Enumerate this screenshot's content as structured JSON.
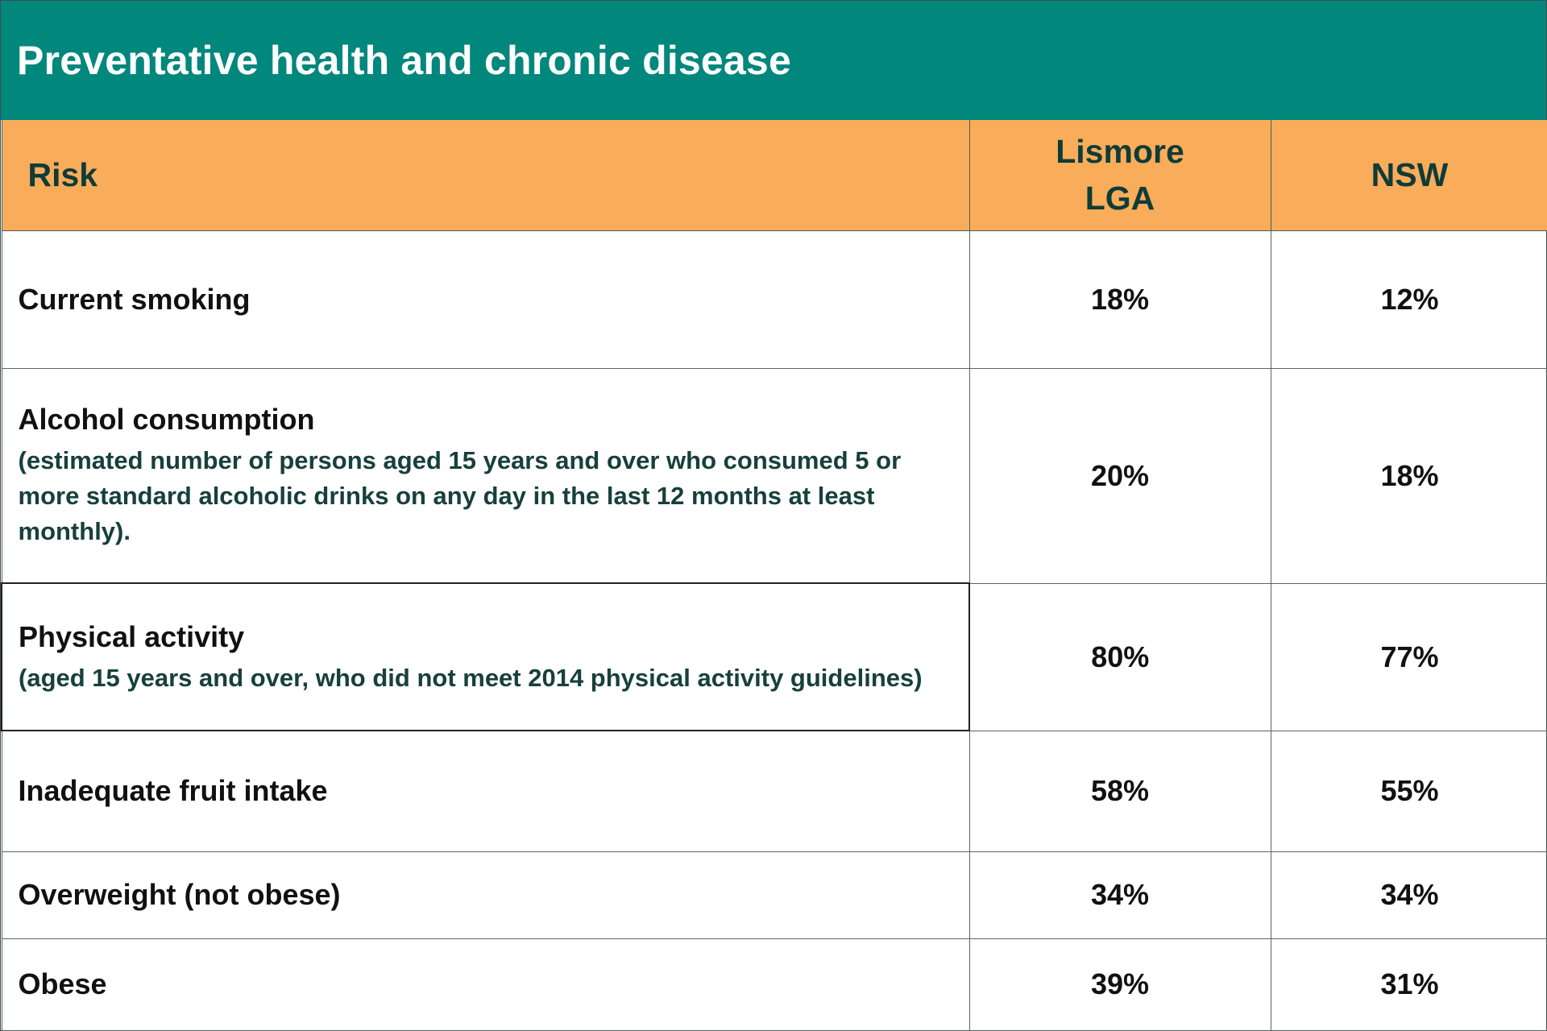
{
  "title": "Preventative health and chronic disease",
  "headers": {
    "risk": "Risk",
    "lismore": "Lismore LGA",
    "nsw": "NSW"
  },
  "rows": [
    {
      "label": "Current smoking",
      "note": "",
      "lismore": "18%",
      "nsw": "12%"
    },
    {
      "label": "Alcohol consumption",
      "note": "(estimated number of persons aged 15 years and over who consumed 5 or more standard alcoholic drinks on any day in the last 12 months at least monthly).",
      "lismore": "20%",
      "nsw": "18%"
    },
    {
      "label": "Physical activity",
      "note": "(aged 15 years and over, who did not meet 2014 physical activity guidelines)",
      "lismore": "80%",
      "nsw": "77%"
    },
    {
      "label": "Inadequate fruit intake",
      "note": "",
      "lismore": "58%",
      "nsw": "55%"
    },
    {
      "label": "Overweight (not obese)",
      "note": "",
      "lismore": "34%",
      "nsw": "34%"
    },
    {
      "label": "Obese",
      "note": "",
      "lismore": "39%",
      "nsw": "31%"
    }
  ],
  "colors": {
    "title_bg": "#02877d",
    "header_bg": "#f9ac59"
  }
}
